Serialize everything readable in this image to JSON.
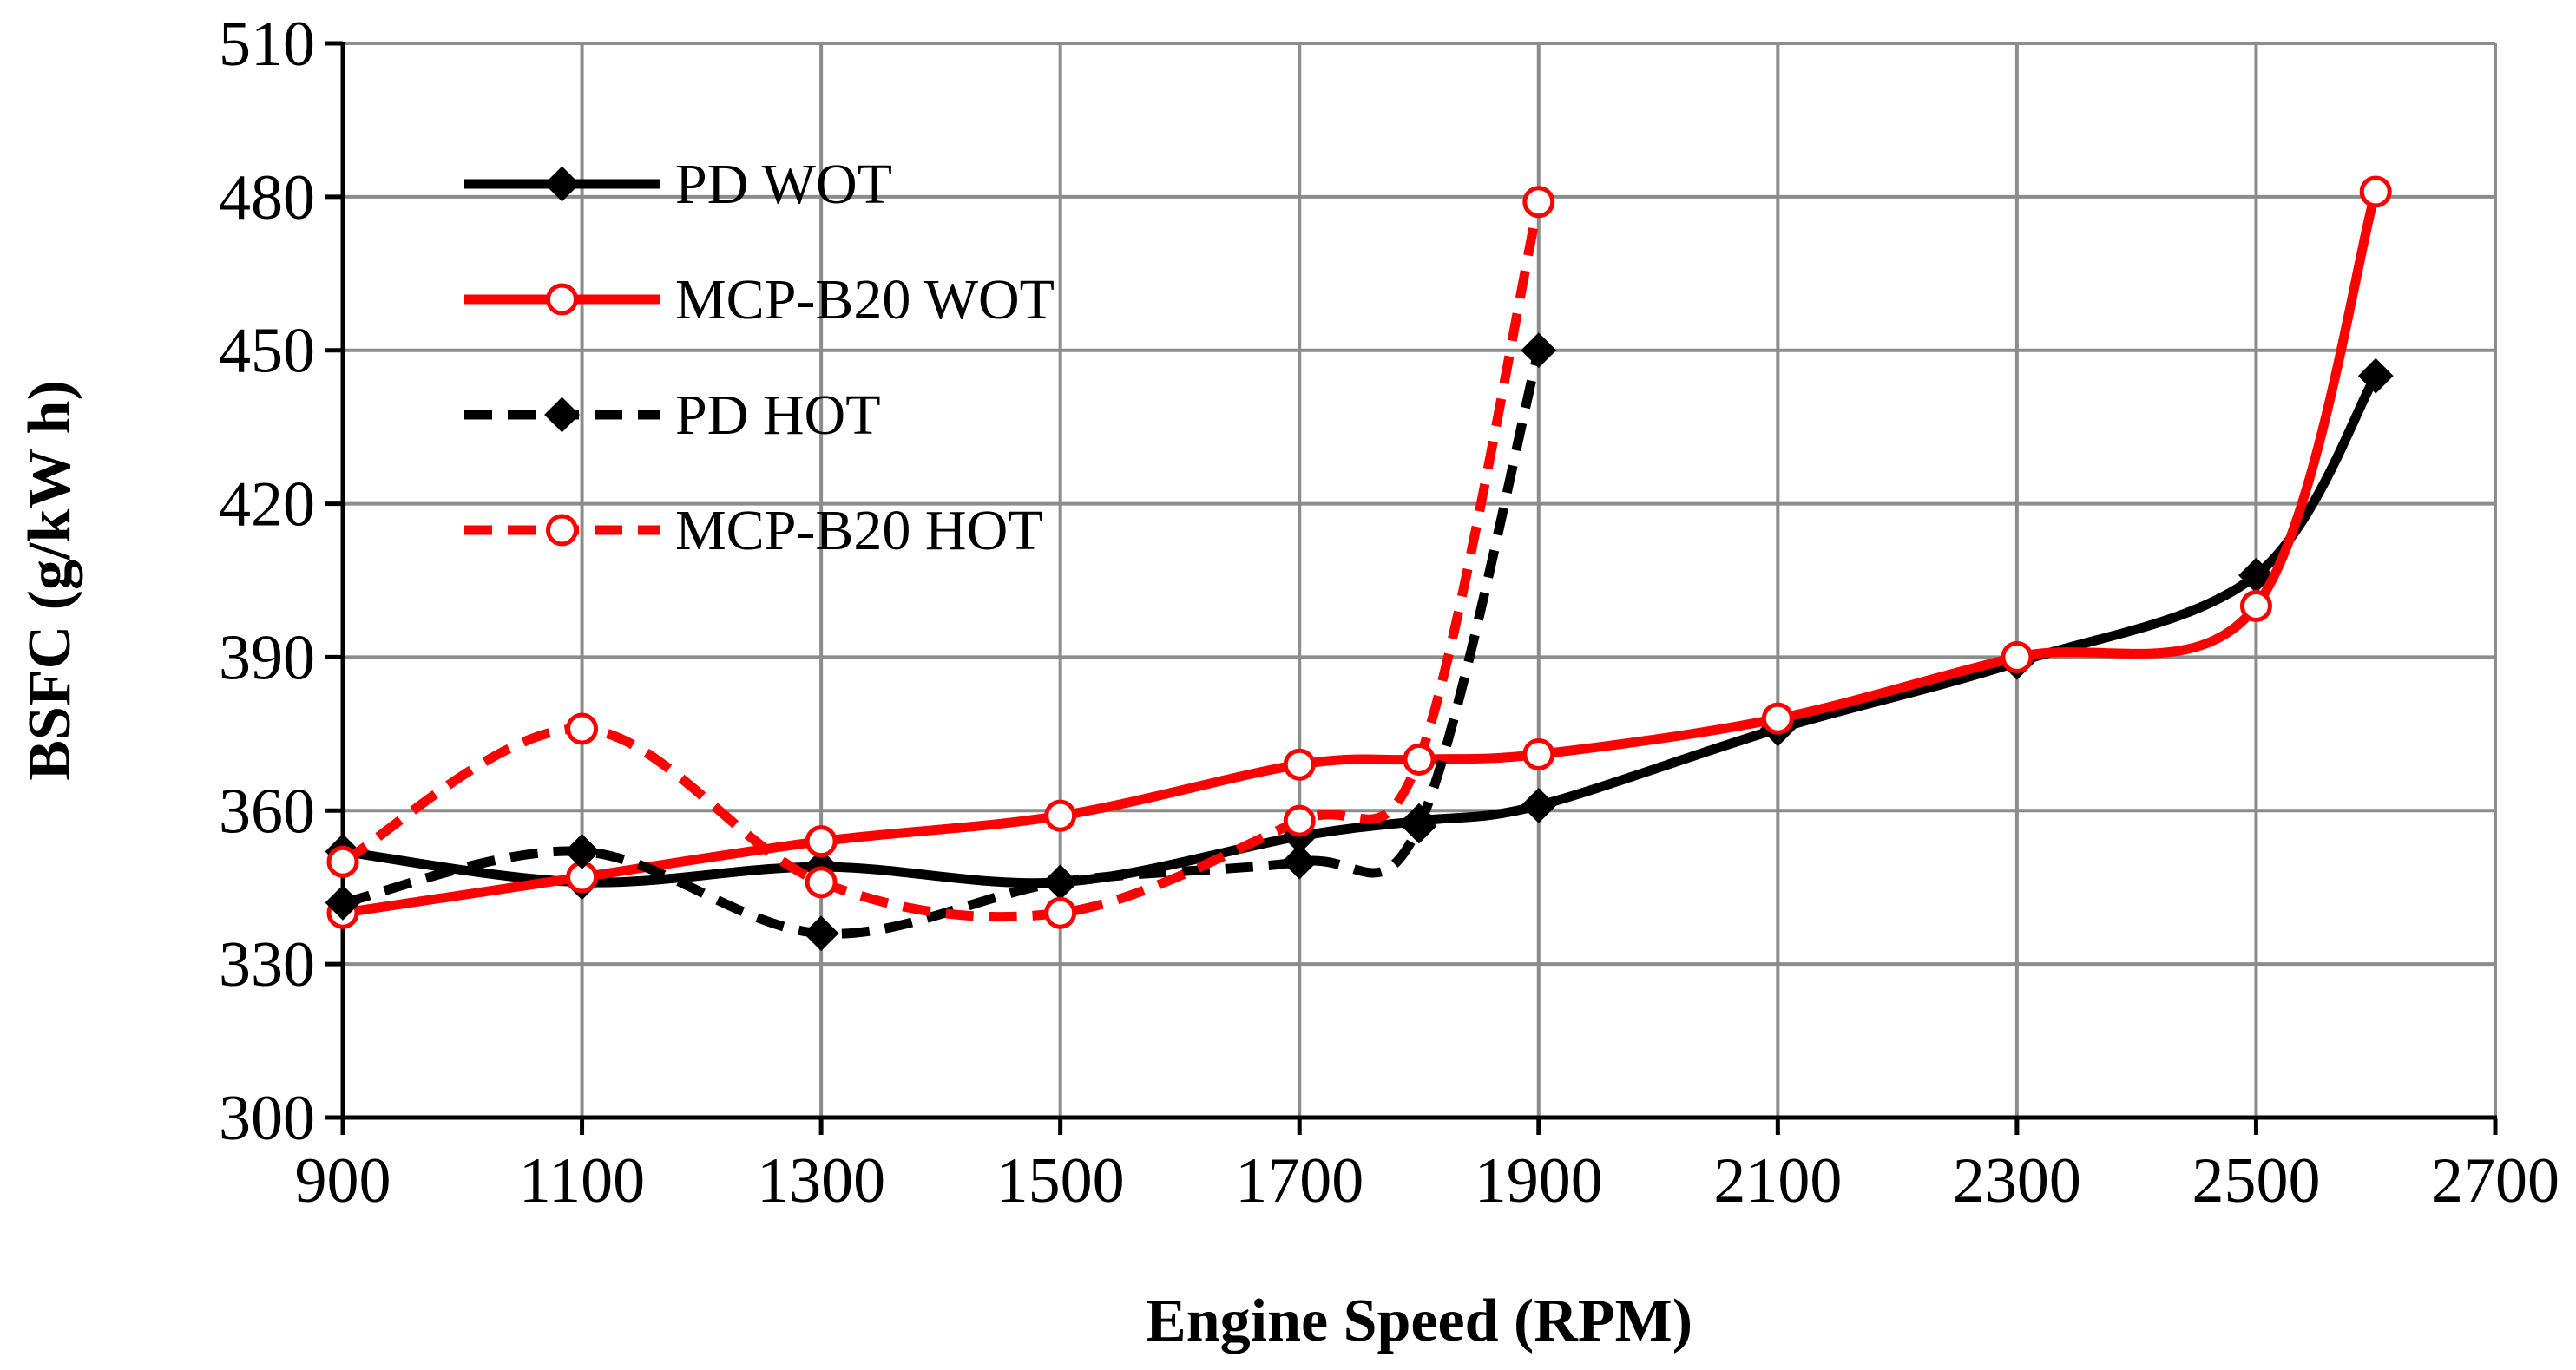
{
  "chart_data": {
    "type": "line",
    "title": "",
    "xlabel": "Engine Speed (RPM)",
    "ylabel": "BSFC (g/kW h)",
    "xlim": [
      900,
      2700
    ],
    "ylim": [
      300,
      510
    ],
    "xticks": [
      900,
      1100,
      1300,
      1500,
      1700,
      1900,
      2100,
      2300,
      2500,
      2700
    ],
    "yticks": [
      300,
      330,
      360,
      390,
      420,
      450,
      480,
      510
    ],
    "grid": true,
    "legend_position": "top-left",
    "series": [
      {
        "name": "PD WOT",
        "color": "#000000",
        "dash": "solid",
        "marker": "diamond",
        "x": [
          900,
          1100,
          1300,
          1500,
          1700,
          1800,
          1900,
          2100,
          2300,
          2500,
          2600
        ],
        "y": [
          352,
          346,
          349,
          346,
          355,
          358,
          361,
          376,
          389,
          406,
          445
        ]
      },
      {
        "name": "MCP-B20 WOT",
        "color": "#ff0000",
        "dash": "solid",
        "marker": "circle",
        "x": [
          900,
          1100,
          1300,
          1500,
          1700,
          1800,
          1900,
          2100,
          2300,
          2500,
          2600
        ],
        "y": [
          340,
          347,
          354,
          359,
          369,
          370,
          371,
          378,
          390,
          400,
          481
        ]
      },
      {
        "name": "PD HOT",
        "color": "#000000",
        "dash": "dashed",
        "marker": "diamond",
        "x": [
          900,
          1100,
          1300,
          1500,
          1700,
          1800,
          1900
        ],
        "y": [
          342,
          352,
          336,
          346,
          350,
          357,
          450
        ]
      },
      {
        "name": "MCP-B20 HOT",
        "color": "#ff0000",
        "dash": "dashed",
        "marker": "circle",
        "x": [
          900,
          1100,
          1300,
          1500,
          1700,
          1800,
          1900
        ],
        "y": [
          350,
          376,
          346,
          340,
          358,
          370,
          479
        ]
      }
    ]
  }
}
